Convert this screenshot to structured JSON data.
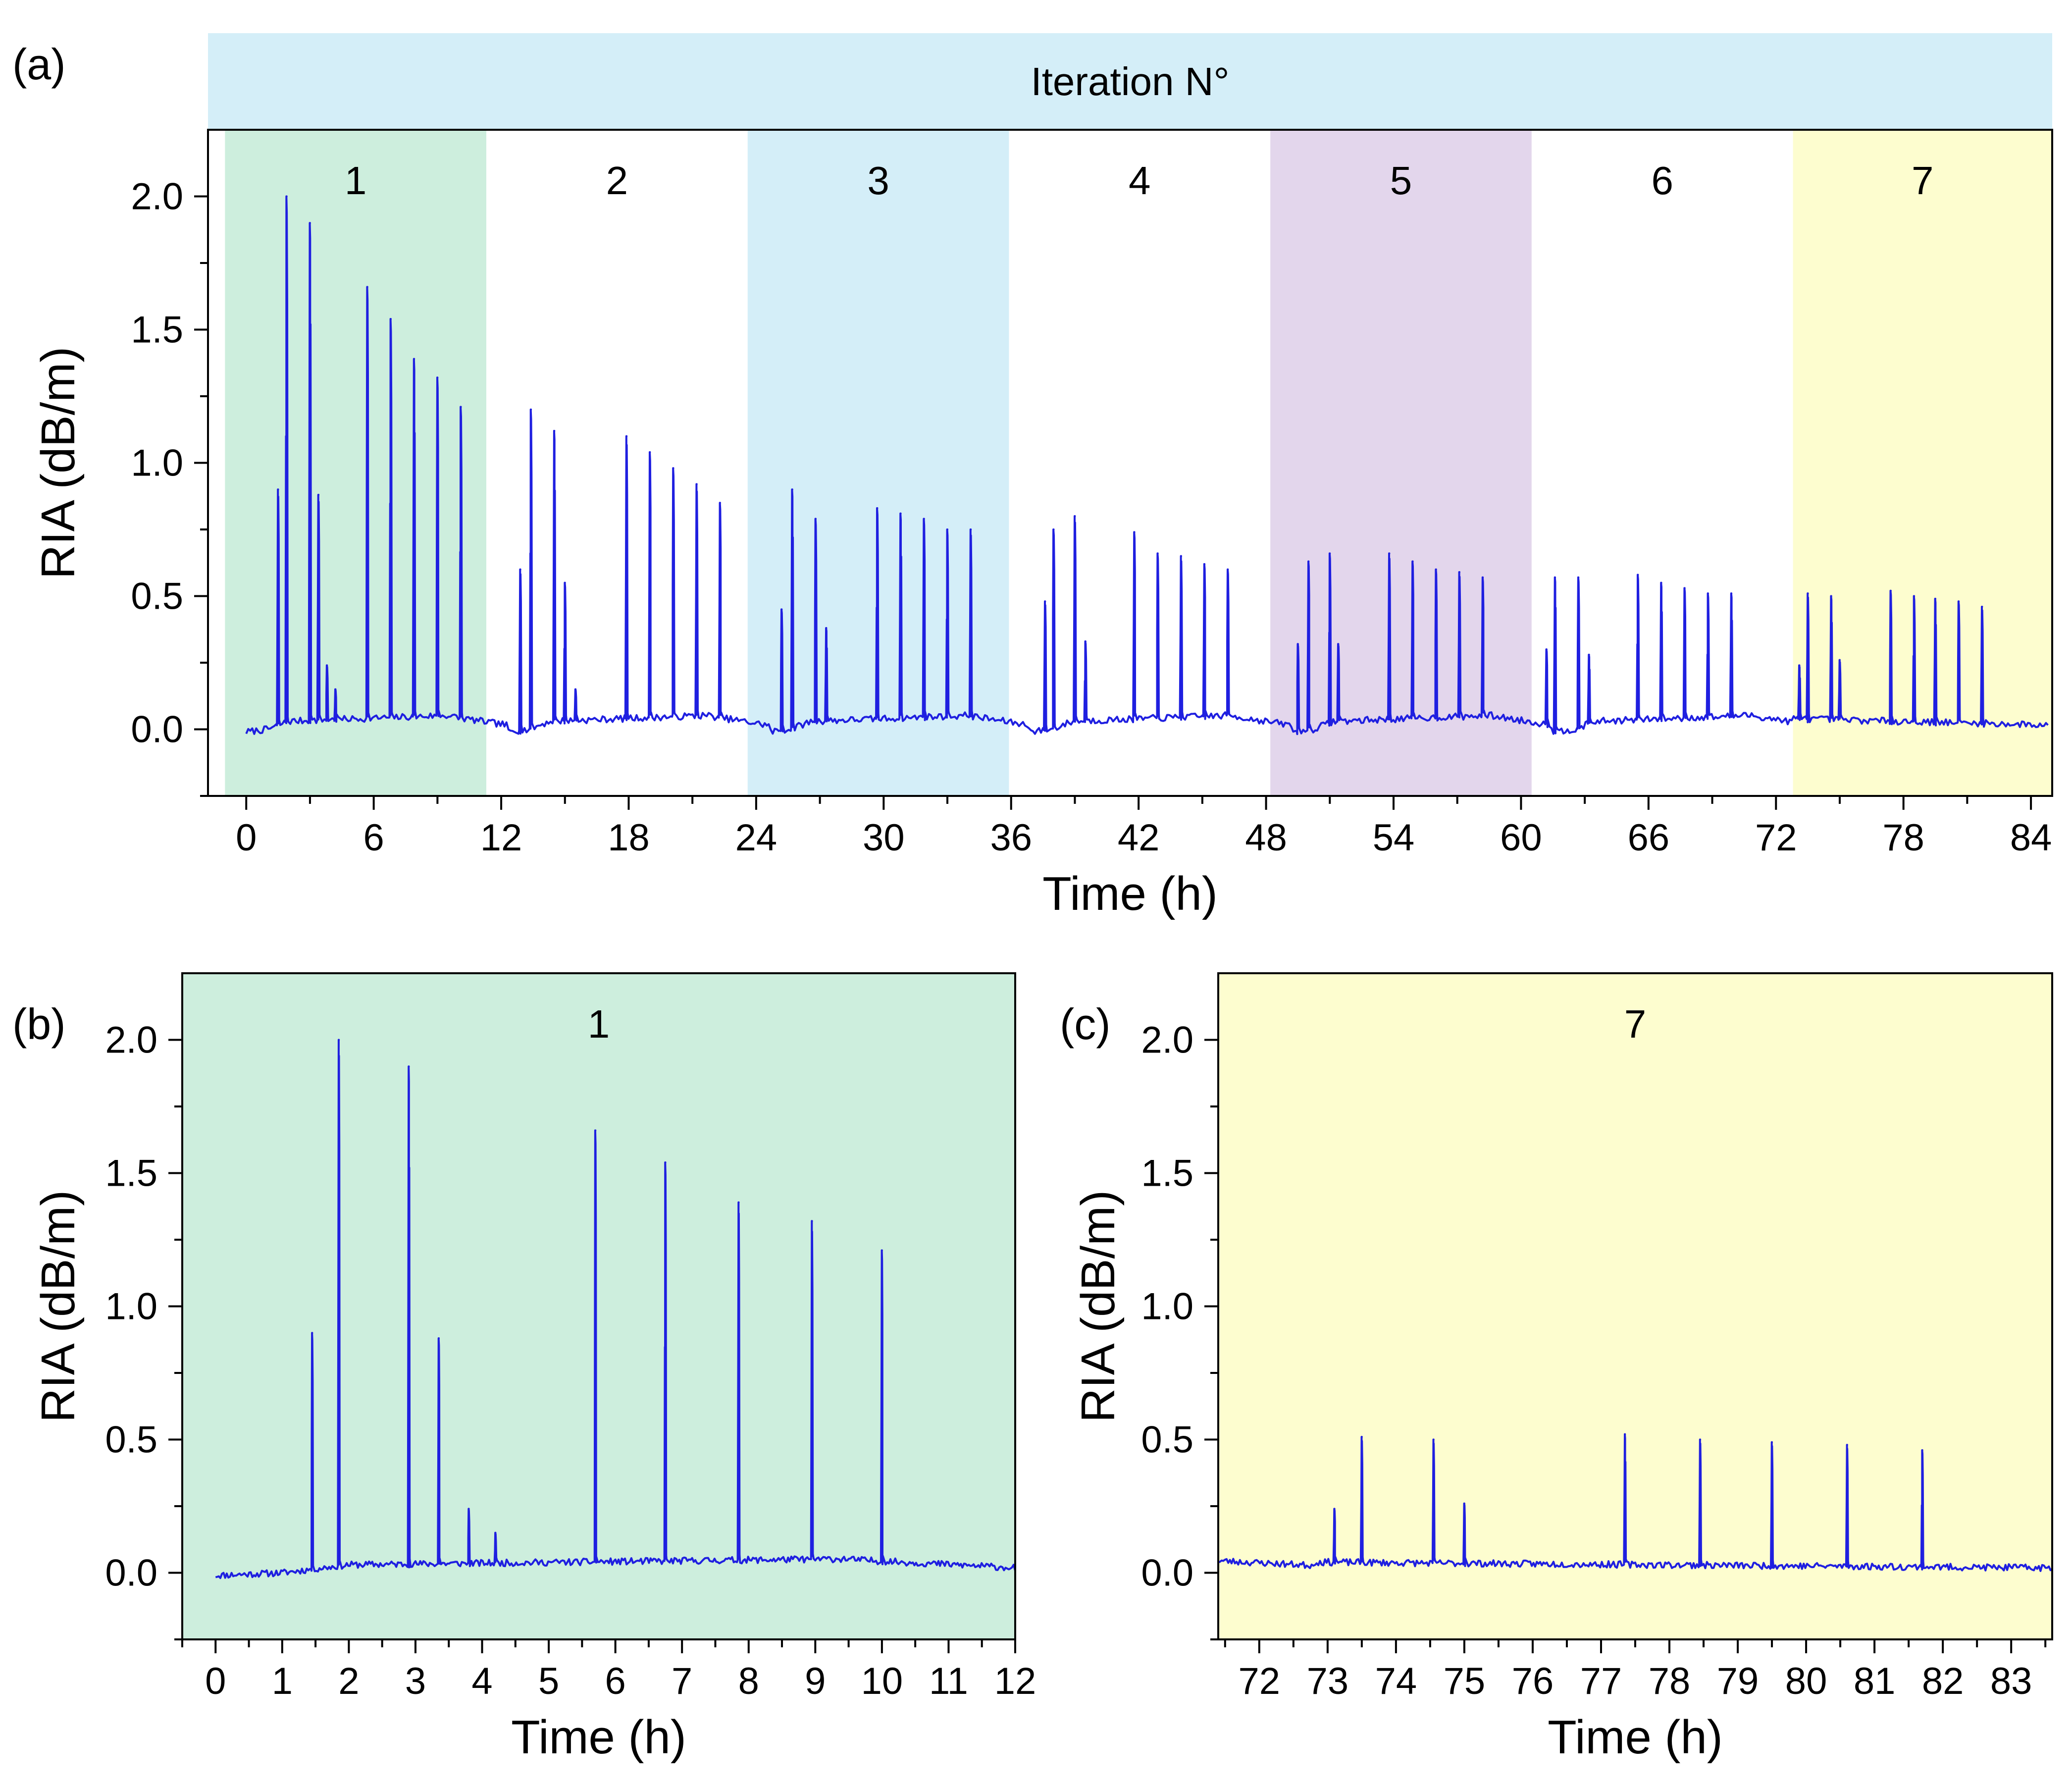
{
  "colors": {
    "trace": "#1f1fe0",
    "header": "#d4eef8",
    "band1": "#cdeedd",
    "band3": "#d4eef8",
    "band5": "#e3d6ec",
    "band7": "#fdfdcf"
  },
  "chart_data": [
    {
      "id": "a",
      "type": "line",
      "panel_label": "(a)",
      "header_title": "Iteration N°",
      "xlabel": "Time (h)",
      "ylabel": "RIA (dB/m)",
      "xlim": [
        -1.8,
        85.0
      ],
      "ylim": [
        -0.25,
        2.25
      ],
      "xticks": [
        0,
        6,
        12,
        18,
        24,
        30,
        36,
        42,
        48,
        54,
        60,
        66,
        72,
        78,
        84
      ],
      "xtick_labels": [
        "0",
        "6",
        "12",
        "18",
        "24",
        "30",
        "36",
        "42",
        "48",
        "54",
        "60",
        "66",
        "72",
        "78",
        "84"
      ],
      "yticks": [
        0.0,
        0.5,
        1.0,
        1.5,
        2.0
      ],
      "ytick_labels": [
        "0.0",
        "0.5",
        "1.0",
        "1.5",
        "2.0"
      ],
      "iterations": [
        {
          "label": "1",
          "start": -1.0,
          "end": 11.3,
          "color": "#cdeedd"
        },
        {
          "label": "2",
          "start": 11.3,
          "end": 23.6,
          "color": "#ffffff"
        },
        {
          "label": "3",
          "start": 23.6,
          "end": 35.9,
          "color": "#d4eef8"
        },
        {
          "label": "4",
          "start": 35.9,
          "end": 48.2,
          "color": "#ffffff"
        },
        {
          "label": "5",
          "start": 48.2,
          "end": 60.5,
          "color": "#e3d6ec"
        },
        {
          "label": "6",
          "start": 60.5,
          "end": 72.8,
          "color": "#ffffff"
        },
        {
          "label": "7",
          "start": 72.8,
          "end": 85.0,
          "color": "#fdfdcf"
        }
      ],
      "series": [
        {
          "name": "RIA",
          "x_range": [
            0.0,
            84.8
          ],
          "peaks": [
            [
              1.5,
              0.9
            ],
            [
              1.9,
              2.0
            ],
            [
              3.0,
              1.9
            ],
            [
              3.4,
              0.88
            ],
            [
              3.8,
              0.24
            ],
            [
              4.2,
              0.15
            ],
            [
              5.7,
              1.66
            ],
            [
              6.8,
              1.54
            ],
            [
              7.9,
              1.39
            ],
            [
              9.0,
              1.32
            ],
            [
              10.1,
              1.21
            ],
            [
              12.9,
              0.6
            ],
            [
              13.4,
              1.2
            ],
            [
              14.5,
              1.12
            ],
            [
              15.0,
              0.55
            ],
            [
              15.5,
              0.15
            ],
            [
              17.9,
              1.1
            ],
            [
              19.0,
              1.04
            ],
            [
              20.1,
              0.98
            ],
            [
              21.2,
              0.92
            ],
            [
              22.3,
              0.85
            ],
            [
              25.2,
              0.45
            ],
            [
              25.7,
              0.9
            ],
            [
              26.8,
              0.79
            ],
            [
              27.3,
              0.38
            ],
            [
              29.7,
              0.83
            ],
            [
              30.8,
              0.81
            ],
            [
              31.9,
              0.79
            ],
            [
              33.0,
              0.75
            ],
            [
              34.1,
              0.75
            ],
            [
              37.6,
              0.48
            ],
            [
              38.0,
              0.75
            ],
            [
              39.0,
              0.8
            ],
            [
              39.5,
              0.33
            ],
            [
              41.8,
              0.74
            ],
            [
              42.9,
              0.66
            ],
            [
              44.0,
              0.65
            ],
            [
              45.1,
              0.62
            ],
            [
              46.2,
              0.6
            ],
            [
              49.5,
              0.32
            ],
            [
              50.0,
              0.63
            ],
            [
              51.0,
              0.66
            ],
            [
              51.4,
              0.32
            ],
            [
              53.8,
              0.66
            ],
            [
              54.9,
              0.63
            ],
            [
              56.0,
              0.6
            ],
            [
              57.1,
              0.59
            ],
            [
              58.2,
              0.57
            ],
            [
              61.2,
              0.3
            ],
            [
              61.6,
              0.57
            ],
            [
              62.7,
              0.57
            ],
            [
              63.2,
              0.28
            ],
            [
              65.5,
              0.58
            ],
            [
              66.6,
              0.55
            ],
            [
              67.7,
              0.53
            ],
            [
              68.8,
              0.51
            ],
            [
              69.9,
              0.51
            ],
            [
              73.1,
              0.24
            ],
            [
              73.5,
              0.51
            ],
            [
              74.6,
              0.5
            ],
            [
              75.0,
              0.26
            ],
            [
              77.4,
              0.52
            ],
            [
              78.5,
              0.5
            ],
            [
              79.5,
              0.49
            ],
            [
              80.6,
              0.48
            ],
            [
              81.7,
              0.46
            ]
          ]
        }
      ]
    },
    {
      "id": "b",
      "type": "line",
      "panel_label": "(b)",
      "band_label": "1",
      "band_color": "#cdeedd",
      "xlabel": "Time (h)",
      "ylabel": "RIA (dB/m)",
      "xlim": [
        -0.5,
        12.0
      ],
      "ylim": [
        -0.25,
        2.25
      ],
      "xticks": [
        0,
        1,
        2,
        3,
        4,
        5,
        6,
        7,
        8,
        9,
        10,
        11,
        12
      ],
      "xtick_labels": [
        "0",
        "1",
        "2",
        "3",
        "4",
        "5",
        "6",
        "7",
        "8",
        "9",
        "10",
        "11",
        "12"
      ],
      "yticks": [
        0.0,
        0.5,
        1.0,
        1.5,
        2.0
      ],
      "ytick_labels": [
        "0.0",
        "0.5",
        "1.0",
        "1.5",
        "2.0"
      ],
      "series": [
        {
          "name": "RIA",
          "x_range": [
            0.0,
            12.0
          ],
          "peaks": [
            [
              1.45,
              0.9
            ],
            [
              1.85,
              2.0
            ],
            [
              2.9,
              1.9
            ],
            [
              3.35,
              0.88
            ],
            [
              3.8,
              0.24
            ],
            [
              4.2,
              0.15
            ],
            [
              5.7,
              1.66
            ],
            [
              6.75,
              1.54
            ],
            [
              7.85,
              1.39
            ],
            [
              8.95,
              1.32
            ],
            [
              10.0,
              1.21
            ]
          ]
        }
      ]
    },
    {
      "id": "c",
      "type": "line",
      "panel_label": "(c)",
      "band_label": "7",
      "band_color": "#fdfdcf",
      "xlabel": "Time (h)",
      "ylabel": "RIA (dB/m)",
      "xlim": [
        71.4,
        83.6
      ],
      "ylim": [
        -0.25,
        2.25
      ],
      "xticks": [
        72,
        73,
        74,
        75,
        76,
        77,
        78,
        79,
        80,
        81,
        82,
        83
      ],
      "xtick_labels": [
        "72",
        "73",
        "74",
        "75",
        "76",
        "77",
        "78",
        "79",
        "80",
        "81",
        "82",
        "83"
      ],
      "yticks": [
        0.0,
        0.5,
        1.0,
        1.5,
        2.0
      ],
      "ytick_labels": [
        "0.0",
        "0.5",
        "1.0",
        "1.5",
        "2.0"
      ],
      "series": [
        {
          "name": "RIA",
          "x_range": [
            71.4,
            83.6
          ],
          "peaks": [
            [
              73.1,
              0.24
            ],
            [
              73.5,
              0.51
            ],
            [
              74.55,
              0.5
            ],
            [
              75.0,
              0.26
            ],
            [
              77.35,
              0.52
            ],
            [
              78.45,
              0.5
            ],
            [
              79.5,
              0.49
            ],
            [
              80.6,
              0.48
            ],
            [
              81.7,
              0.46
            ]
          ]
        }
      ]
    }
  ]
}
